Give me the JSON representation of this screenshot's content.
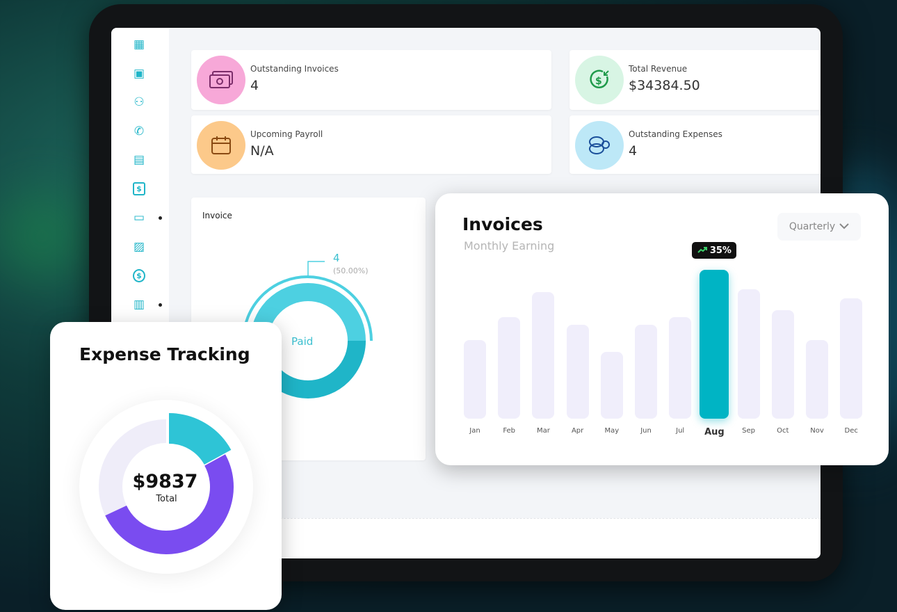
{
  "sidebar": {
    "items": [
      {
        "icon": "dashboard-icon"
      },
      {
        "icon": "contact-card-icon"
      },
      {
        "icon": "users-icon"
      },
      {
        "icon": "phone-icon"
      },
      {
        "icon": "document-icon"
      },
      {
        "icon": "invoice-dollar-icon"
      },
      {
        "icon": "credit-card-icon",
        "dot": true
      },
      {
        "icon": "id-badge-icon"
      },
      {
        "icon": "dollar-circle-icon"
      },
      {
        "icon": "cash-icon",
        "dot": true
      }
    ]
  },
  "stats": [
    {
      "label": "Outstanding Invoices",
      "value": "4",
      "icon": "cash-icon",
      "color": "#f7a8d8"
    },
    {
      "label": "Total Revenue",
      "value": "$34384.50",
      "icon": "dollar-refund-icon",
      "color": "#d8f5e4"
    },
    {
      "label": "Upcoming Payroll",
      "value": "N/A",
      "icon": "calendar-icon",
      "color": "#fcc98a"
    },
    {
      "label": "Outstanding Expenses",
      "value": "4",
      "icon": "coins-icon",
      "color": "#bde8f7"
    }
  ],
  "invoice_donut": {
    "title": "Invoice",
    "center_label": "Paid",
    "callout_value": "4",
    "callout_percent": "(50.00%)",
    "colors": [
      "#4dd0e1",
      "#1fb5c8"
    ]
  },
  "invoices_chart": {
    "title": "Invoices",
    "subtitle": "Monthly Earning",
    "period_select": "Quarterly",
    "highlight_badge": "35%",
    "chart_data": {
      "type": "bar",
      "categories": [
        "Jan",
        "Feb",
        "Mar",
        "Apr",
        "May",
        "Jun",
        "Jul",
        "Aug",
        "Sep",
        "Oct",
        "Nov",
        "Dec"
      ],
      "values": [
        53,
        68,
        85,
        63,
        45,
        63,
        68,
        100,
        87,
        73,
        53,
        81
      ],
      "highlight": "Aug",
      "accent": "#00b4c4",
      "bar_color": "#f0eefb"
    }
  },
  "expense": {
    "title": "Expense Tracking",
    "total": "$9837",
    "total_label": "Total",
    "chart_data": {
      "type": "pie",
      "segments": [
        {
          "value": 17,
          "color": "#2ec4d6"
        },
        {
          "value": 51,
          "color": "#7a4cf0"
        },
        {
          "value": 32,
          "color": "#efedf9"
        }
      ]
    }
  }
}
